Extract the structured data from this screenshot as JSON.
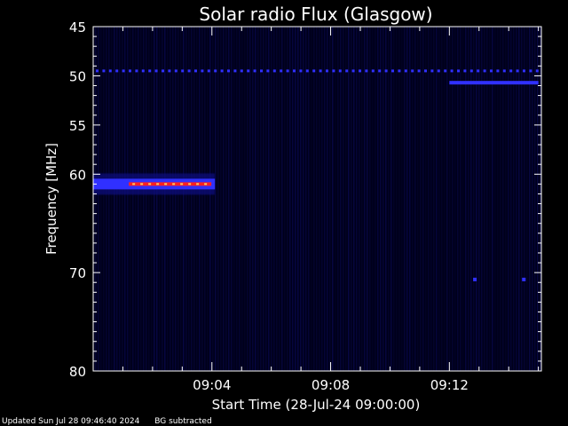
{
  "chart_data": {
    "type": "heatmap",
    "title": "Solar radio Flux (Glasgow)",
    "ylabel": "Frequency [MHz]",
    "xlabel": "Start Time (28-Jul-24 09:00:00)",
    "y_range": [
      45,
      80
    ],
    "y_ticks": [
      "45",
      "50",
      "55",
      "60",
      "70",
      "80"
    ],
    "y_tick_values": [
      45,
      50,
      55,
      60,
      70,
      80
    ],
    "x_range_minutes": [
      0,
      15.1
    ],
    "x_ticks": [
      "09:04",
      "09:08",
      "09:12"
    ],
    "x_tick_minutes": [
      4,
      8,
      12
    ],
    "grid": false,
    "features": [
      {
        "name": "persistent-line-49.5MHz",
        "freq_mhz": 49.5,
        "t_start": 0,
        "t_end": 15.1,
        "intensity": "low",
        "pattern": "dotted"
      },
      {
        "name": "burst-61MHz",
        "freq_mhz": 61,
        "t_start": 0,
        "t_end": 4.1,
        "intensity": "high"
      },
      {
        "name": "line-50.7MHz-late",
        "freq_mhz": 50.7,
        "t_start": 12.0,
        "t_end": 15.0,
        "intensity": "low"
      },
      {
        "name": "spot-70.7MHz-a",
        "freq_mhz": 70.7,
        "t_start": 12.8,
        "t_end": 12.9,
        "intensity": "low"
      },
      {
        "name": "spot-70.7MHz-b",
        "freq_mhz": 70.7,
        "t_start": 14.45,
        "t_end": 14.55,
        "intensity": "low"
      }
    ],
    "colors": {
      "background": "#000000",
      "low": "#1a1acc",
      "mid": "#3030ff",
      "high": "#ff2020",
      "peak": "#ffcc66"
    }
  },
  "footer": {
    "updated": "Updated Sun Jul 28 09:46:40 2024",
    "note": "BG subtracted"
  }
}
